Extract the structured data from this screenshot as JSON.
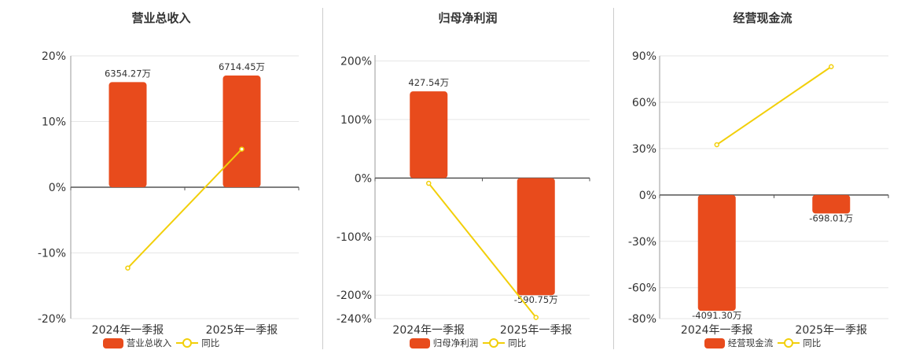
{
  "colors": {
    "bar": "#e84b1c",
    "line": "#f2cf0a",
    "grid": "#e6e6e6",
    "axis": "#555555",
    "text": "#333333"
  },
  "chart_data": [
    {
      "type": "bar",
      "title": "营业总收入",
      "categories": [
        "2024年一季报",
        "2025年一季报"
      ],
      "ylim": [
        -20,
        20
      ],
      "yticks": [
        20,
        10,
        0,
        -10,
        -20
      ],
      "ytick_labels": [
        "20%",
        "10%",
        "0%",
        "-10%",
        "-20%"
      ],
      "series": [
        {
          "name": "营业总收入",
          "kind": "bar",
          "values": [
            16.0,
            17.0
          ],
          "labels": [
            "6354.27万",
            "6714.45万"
          ]
        },
        {
          "name": "同比",
          "kind": "line",
          "values": [
            -12.3,
            5.8
          ]
        }
      ],
      "legend": [
        "营业总收入",
        "同比"
      ],
      "legend_position": "bottom"
    },
    {
      "type": "bar",
      "title": "归母净利润",
      "categories": [
        "2024年一季报",
        "2025年一季报"
      ],
      "ylim": [
        -240,
        210
      ],
      "yticks": [
        200,
        100,
        0,
        -100,
        -200,
        -240
      ],
      "ytick_labels": [
        "200%",
        "100%",
        "0%",
        "-100%",
        "-200%",
        "-240%"
      ],
      "series": [
        {
          "name": "归母净利润",
          "kind": "bar",
          "values": [
            148,
            -200
          ],
          "labels": [
            "427.54万",
            "-590.75万"
          ]
        },
        {
          "name": "同比",
          "kind": "line",
          "values": [
            -9,
            -238
          ]
        }
      ],
      "legend": [
        "归母净利润",
        "同比"
      ],
      "legend_position": "bottom"
    },
    {
      "type": "bar",
      "title": "经营现金流",
      "categories": [
        "2024年一季报",
        "2025年一季报"
      ],
      "ylim": [
        -80,
        90
      ],
      "yticks": [
        90,
        60,
        30,
        0,
        -30,
        -60,
        -80
      ],
      "ytick_labels": [
        "90%",
        "60%",
        "30%",
        "0%",
        "-30%",
        "-60%",
        "-80%"
      ],
      "series": [
        {
          "name": "经营现金流",
          "kind": "bar",
          "values": [
            -75,
            -12
          ],
          "labels": [
            "-4091.30万",
            "-698.01万"
          ]
        },
        {
          "name": "同比",
          "kind": "line",
          "values": [
            32.5,
            83
          ]
        }
      ],
      "legend": [
        "经营现金流",
        "同比"
      ],
      "legend_position": "bottom"
    }
  ]
}
